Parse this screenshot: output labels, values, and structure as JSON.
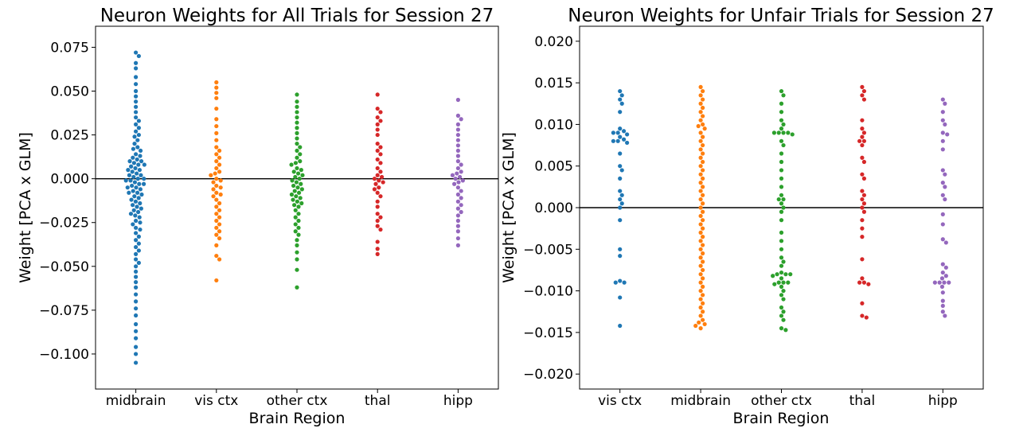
{
  "chart_data": [
    {
      "type": "scatter",
      "subtype": "swarm",
      "title": "Neuron Weights for All Trials for Session 27",
      "xlabel": "Brain Region",
      "ylabel": "Weight [PCA x GLM]",
      "ylim": [
        -0.12,
        0.087
      ],
      "yticks": [
        "0.075",
        "0.050",
        "0.025",
        "0.000",
        "−0.025",
        "−0.050",
        "−0.075",
        "−0.100"
      ],
      "ytick_values": [
        0.075,
        0.05,
        0.025,
        0.0,
        -0.025,
        -0.05,
        -0.075,
        -0.1
      ],
      "reference_line_y": 0.0,
      "grid": false,
      "categories": [
        "midbrain",
        "vis ctx",
        "other ctx",
        "thal",
        "hipp"
      ],
      "colors": [
        "#1f77b4",
        "#ff7f0e",
        "#2ca02c",
        "#d62728",
        "#9467bd"
      ],
      "series": [
        {
          "values": [
            0.072,
            0.07,
            0.066,
            0.063,
            0.058,
            0.054,
            0.05,
            0.047,
            0.044,
            0.041,
            0.038,
            0.035,
            0.033,
            0.031,
            0.029,
            0.027,
            0.025,
            0.024,
            0.022,
            0.02,
            0.018,
            0.017,
            0.016,
            0.014,
            0.013,
            0.012,
            0.011,
            0.01,
            0.01,
            0.009,
            0.008,
            0.008,
            0.007,
            0.006,
            0.005,
            0.005,
            0.004,
            0.003,
            0.002,
            0.002,
            0.001,
            0.0,
            0.0,
            -0.001,
            -0.001,
            -0.002,
            -0.003,
            -0.003,
            -0.004,
            -0.005,
            -0.005,
            -0.006,
            -0.007,
            -0.008,
            -0.008,
            -0.009,
            -0.01,
            -0.011,
            -0.012,
            -0.013,
            -0.014,
            -0.015,
            -0.016,
            -0.017,
            -0.018,
            -0.019,
            -0.02,
            -0.021,
            -0.022,
            -0.024,
            -0.025,
            -0.026,
            -0.028,
            -0.029,
            -0.031,
            -0.033,
            -0.035,
            -0.037,
            -0.039,
            -0.041,
            -0.043,
            -0.046,
            -0.048,
            -0.05,
            -0.053,
            -0.056,
            -0.059,
            -0.062,
            -0.066,
            -0.07,
            -0.074,
            -0.078,
            -0.083,
            -0.087,
            -0.091,
            -0.096,
            -0.1,
            -0.105
          ]
        },
        {
          "values": [
            0.055,
            0.052,
            0.049,
            0.046,
            0.04,
            0.034,
            0.03,
            0.026,
            0.022,
            0.018,
            0.016,
            0.014,
            0.012,
            0.01,
            0.008,
            0.006,
            0.004,
            0.003,
            0.002,
            0.0,
            -0.001,
            -0.002,
            -0.004,
            -0.005,
            -0.006,
            -0.008,
            -0.009,
            -0.01,
            -0.012,
            -0.014,
            -0.016,
            -0.018,
            -0.02,
            -0.022,
            -0.024,
            -0.026,
            -0.028,
            -0.03,
            -0.032,
            -0.034,
            -0.038,
            -0.044,
            -0.046,
            -0.058
          ]
        },
        {
          "values": [
            0.048,
            0.044,
            0.041,
            0.038,
            0.035,
            0.032,
            0.029,
            0.026,
            0.023,
            0.02,
            0.018,
            0.016,
            0.014,
            0.012,
            0.01,
            0.009,
            0.008,
            0.006,
            0.005,
            0.004,
            0.003,
            0.002,
            0.001,
            0.0,
            -0.001,
            -0.002,
            -0.003,
            -0.004,
            -0.005,
            -0.006,
            -0.007,
            -0.008,
            -0.009,
            -0.01,
            -0.011,
            -0.012,
            -0.013,
            -0.014,
            -0.015,
            -0.016,
            -0.018,
            -0.02,
            -0.022,
            -0.024,
            -0.026,
            -0.028,
            -0.03,
            -0.032,
            -0.035,
            -0.038,
            -0.042,
            -0.046,
            -0.052,
            -0.062
          ]
        },
        {
          "values": [
            0.048,
            0.04,
            0.038,
            0.035,
            0.033,
            0.031,
            0.028,
            0.025,
            0.02,
            0.018,
            0.016,
            0.014,
            0.011,
            0.009,
            0.006,
            0.004,
            0.002,
            0.001,
            0.0,
            -0.001,
            -0.002,
            -0.003,
            -0.005,
            -0.006,
            -0.008,
            -0.01,
            -0.013,
            -0.016,
            -0.02,
            -0.022,
            -0.024,
            -0.027,
            -0.029,
            -0.036,
            -0.04,
            -0.043
          ]
        },
        {
          "values": [
            0.045,
            0.036,
            0.034,
            0.031,
            0.028,
            0.025,
            0.022,
            0.019,
            0.016,
            0.013,
            0.01,
            0.008,
            0.006,
            0.004,
            0.003,
            0.002,
            0.001,
            0.0,
            -0.001,
            -0.002,
            -0.003,
            -0.005,
            -0.007,
            -0.009,
            -0.011,
            -0.013,
            -0.015,
            -0.017,
            -0.019,
            -0.021,
            -0.024,
            -0.027,
            -0.03,
            -0.034,
            -0.038
          ]
        }
      ]
    },
    {
      "type": "scatter",
      "subtype": "swarm",
      "title": "Neuron Weights for Unfair Trials for Session 27",
      "xlabel": "Brain Region",
      "ylabel": "Weight [PCA x GLM]",
      "ylim": [
        -0.0218,
        0.0218
      ],
      "yticks": [
        "0.020",
        "0.015",
        "0.010",
        "0.005",
        "0.000",
        "−0.005",
        "−0.010",
        "−0.015",
        "−0.020"
      ],
      "ytick_values": [
        0.02,
        0.015,
        0.01,
        0.005,
        0.0,
        -0.005,
        -0.01,
        -0.015,
        -0.02
      ],
      "reference_line_y": 0.0,
      "grid": false,
      "categories": [
        "vis ctx",
        "midbrain",
        "other ctx",
        "thal",
        "hipp"
      ],
      "colors": [
        "#1f77b4",
        "#ff7f0e",
        "#2ca02c",
        "#d62728",
        "#9467bd"
      ],
      "series": [
        {
          "values": [
            0.014,
            0.0135,
            0.013,
            0.0125,
            0.0115,
            0.0095,
            0.0092,
            0.009,
            0.009,
            0.0088,
            0.0085,
            0.0082,
            0.008,
            0.008,
            0.0078,
            0.0065,
            0.005,
            0.0045,
            0.0035,
            0.002,
            0.0015,
            0.001,
            0.0005,
            0.0,
            -0.0015,
            -0.005,
            -0.0058,
            -0.0088,
            -0.009,
            -0.009,
            -0.0108,
            -0.0142
          ]
        },
        {
          "values": [
            0.0145,
            0.014,
            0.0135,
            0.013,
            0.0125,
            0.012,
            0.0115,
            0.011,
            0.0105,
            0.01,
            0.0098,
            0.0095,
            0.009,
            0.0085,
            0.008,
            0.0075,
            0.007,
            0.0065,
            0.006,
            0.0055,
            0.005,
            0.0045,
            0.004,
            0.0035,
            0.003,
            0.0025,
            0.002,
            0.0015,
            0.001,
            0.0005,
            0.0,
            -0.0005,
            -0.001,
            -0.0015,
            -0.002,
            -0.0025,
            -0.003,
            -0.0035,
            -0.004,
            -0.0045,
            -0.005,
            -0.0055,
            -0.006,
            -0.0065,
            -0.007,
            -0.0075,
            -0.008,
            -0.0085,
            -0.009,
            -0.0095,
            -0.01,
            -0.0105,
            -0.011,
            -0.0115,
            -0.012,
            -0.0125,
            -0.013,
            -0.0135,
            -0.0138,
            -0.014,
            -0.0142,
            -0.0145
          ]
        },
        {
          "values": [
            0.014,
            0.0135,
            0.0125,
            0.0115,
            0.0105,
            0.01,
            0.0095,
            0.009,
            0.009,
            0.009,
            0.009,
            0.0088,
            0.008,
            0.0075,
            0.0065,
            0.0055,
            0.0045,
            0.0035,
            0.0025,
            0.0015,
            0.001,
            0.001,
            0.0005,
            0.0,
            -0.0005,
            -0.0015,
            -0.003,
            -0.004,
            -0.005,
            -0.006,
            -0.0065,
            -0.007,
            -0.0078,
            -0.008,
            -0.008,
            -0.008,
            -0.0082,
            -0.0085,
            -0.009,
            -0.009,
            -0.009,
            -0.0092,
            -0.0095,
            -0.01,
            -0.0105,
            -0.011,
            -0.012,
            -0.0125,
            -0.013,
            -0.0135,
            -0.0145,
            -0.0147
          ]
        },
        {
          "values": [
            0.0145,
            0.014,
            0.0135,
            0.013,
            0.0105,
            0.0095,
            0.009,
            0.0085,
            0.008,
            0.008,
            0.0075,
            0.006,
            0.0055,
            0.004,
            0.0035,
            0.002,
            0.0015,
            0.001,
            0.0005,
            0.0,
            -0.0005,
            -0.0015,
            -0.0025,
            -0.0035,
            -0.0062,
            -0.0085,
            -0.009,
            -0.009,
            -0.0092,
            -0.0115,
            -0.013,
            -0.0132
          ]
        },
        {
          "values": [
            0.013,
            0.0125,
            0.0115,
            0.0105,
            0.01,
            0.009,
            0.0088,
            0.008,
            0.007,
            0.0045,
            0.004,
            0.003,
            0.0025,
            0.0015,
            0.001,
            -0.0008,
            -0.002,
            -0.0038,
            -0.0042,
            -0.0068,
            -0.0072,
            -0.0078,
            -0.0082,
            -0.0085,
            -0.009,
            -0.009,
            -0.009,
            -0.009,
            -0.0095,
            -0.0102,
            -0.0112,
            -0.0118,
            -0.0125,
            -0.013
          ]
        }
      ]
    }
  ]
}
